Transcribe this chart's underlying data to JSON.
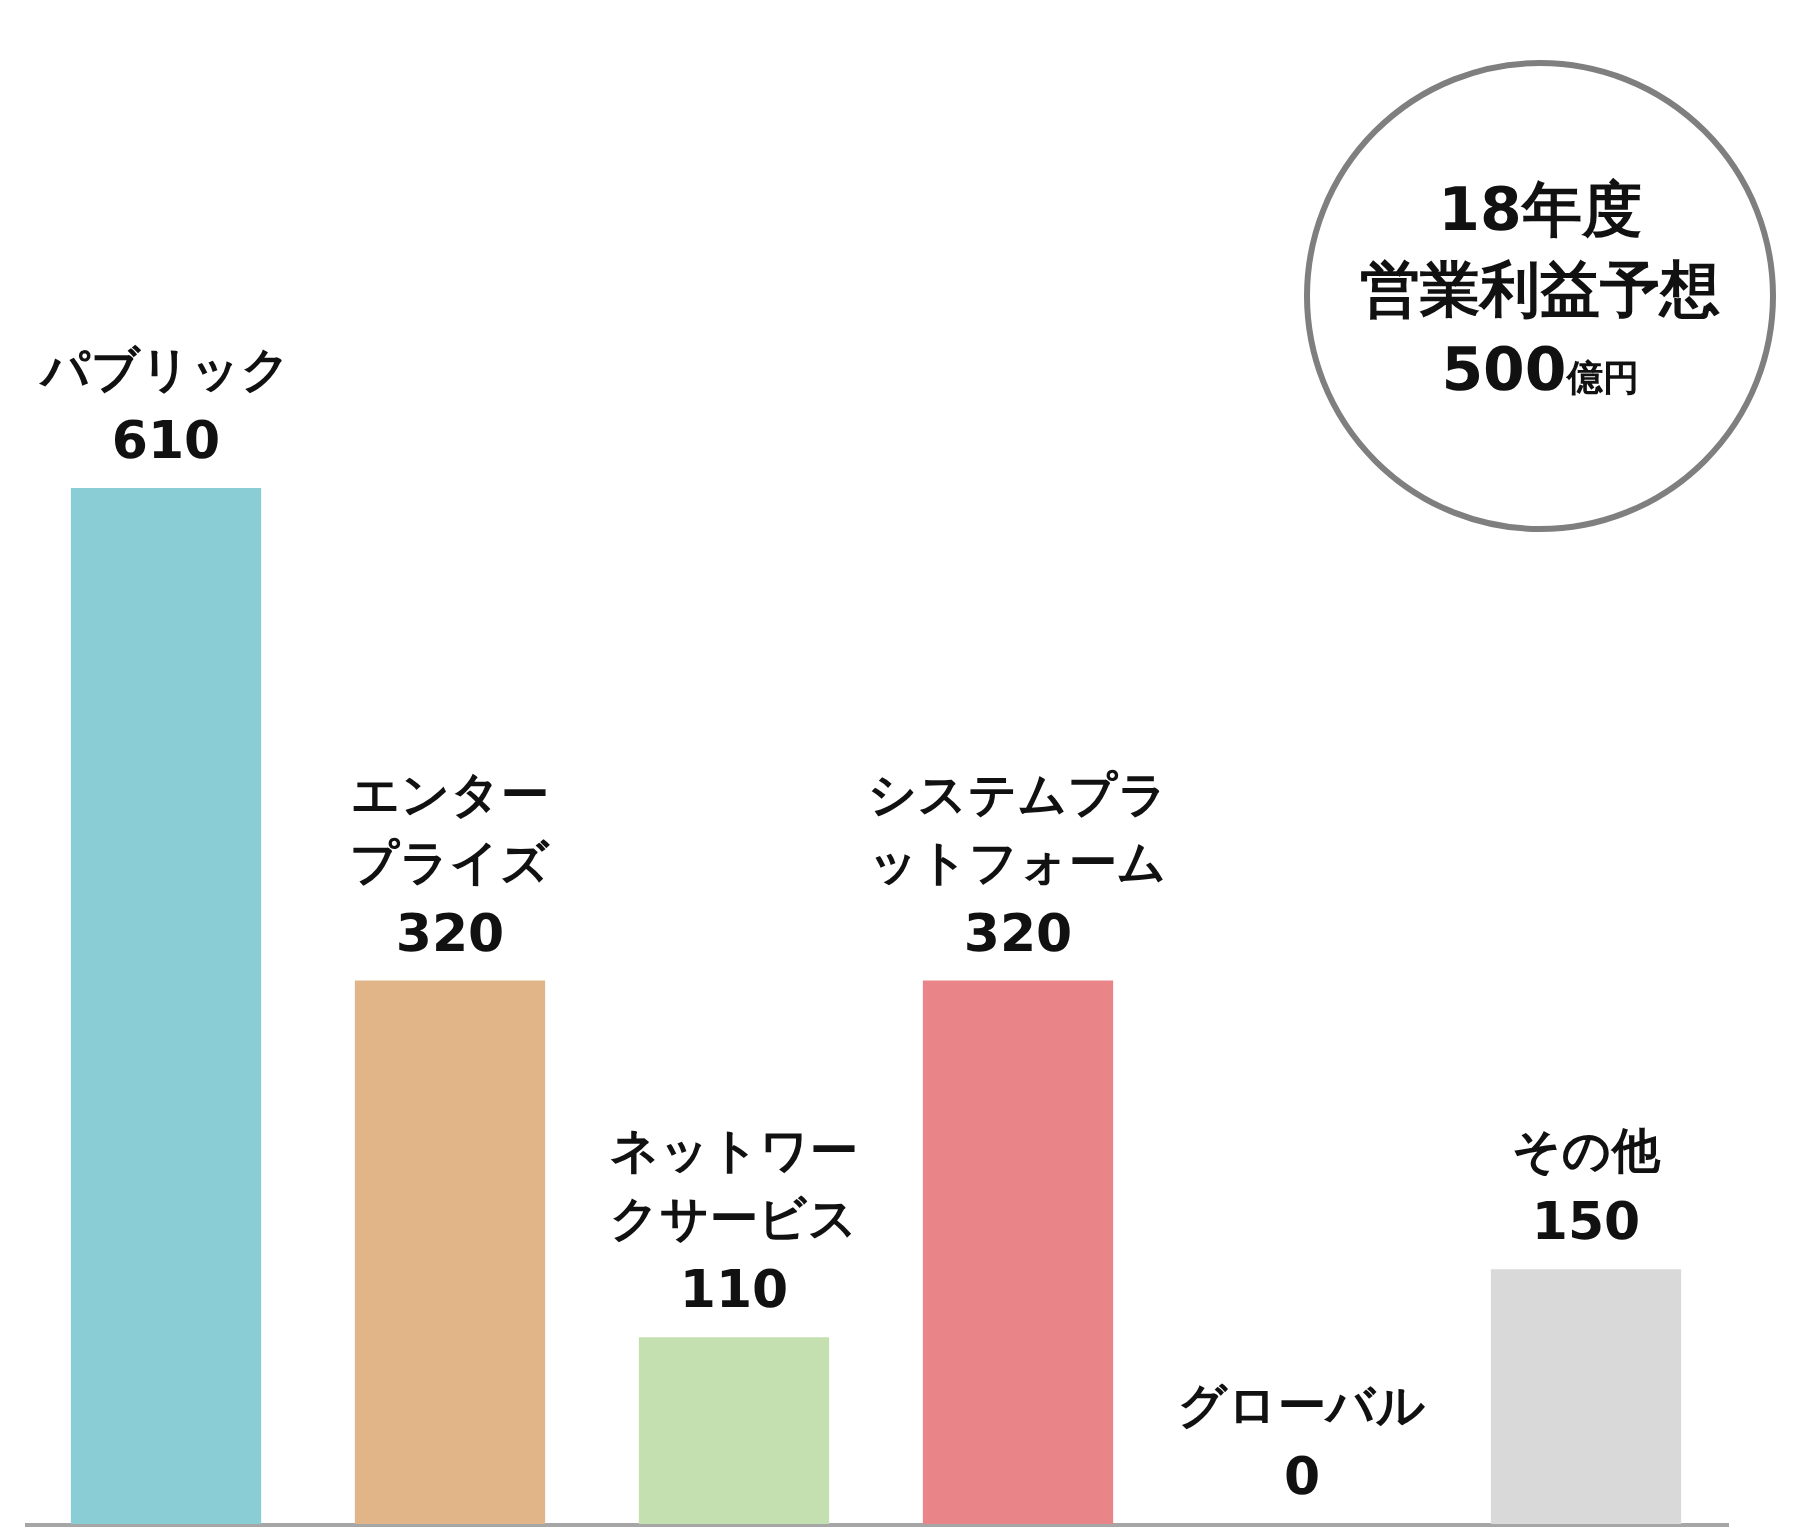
{
  "chart_data": {
    "type": "bar",
    "categories": [
      "パブリック",
      "エンタープライズ",
      "ネットワークサービス",
      "システムプラットフォーム",
      "グローバル",
      "その他"
    ],
    "values": [
      610,
      320,
      110,
      320,
      0,
      150
    ],
    "colors": [
      "#8acdd5",
      "#e2b588",
      "#c5e0b0",
      "#e98489",
      "#bfbfbf",
      "#d9d9d9"
    ],
    "data_labels": true,
    "annotations": [
      "18年度",
      "営業利益予想",
      "500億円"
    ]
  }
}
